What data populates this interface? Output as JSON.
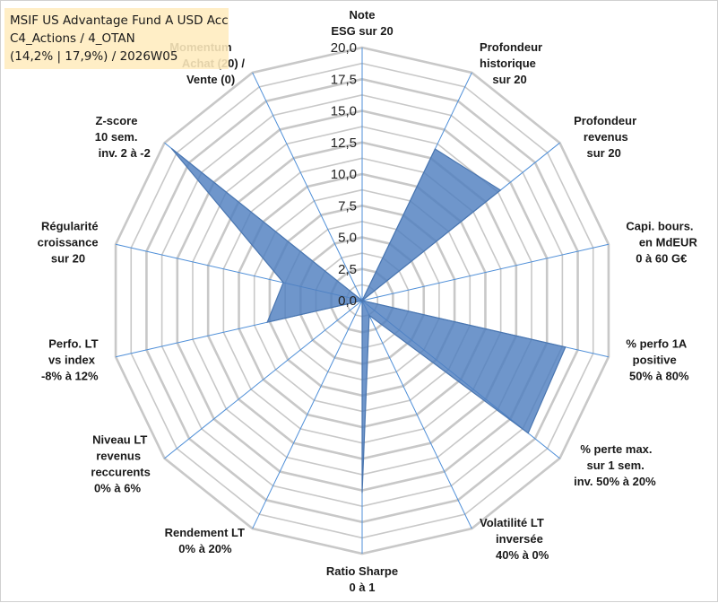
{
  "title": {
    "line1": "MSIF US Advantage Fund A USD Acc",
    "line2": "C4_Actions / 4_OTAN",
    "line3": "(14,2% | 17,9%) / 2026W05"
  },
  "colors": {
    "fill": "#4f7fbf",
    "stroke": "#4a76b0",
    "grid": "#c8c8c8",
    "spoke": "#4f8fd8",
    "title_bg": "#ffecbe"
  },
  "chart_data": {
    "type": "radar",
    "ylim": [
      0,
      20
    ],
    "ticks": [
      "0,0",
      "2,5",
      "5,0",
      "7,5",
      "10,0",
      "12,5",
      "15,0",
      "17,5",
      "20,0"
    ],
    "categories": [
      [
        "Note",
        "ESG sur 20"
      ],
      [
        "Profondeur",
        "historique",
        "sur 20"
      ],
      [
        "Profondeur",
        "revenus",
        "sur 20"
      ],
      [
        "Capi. bours.",
        "en MdEUR",
        "0 à 60 G€"
      ],
      [
        "% perfo 1A",
        "positive",
        "50% à 80%"
      ],
      [
        "% perte max.",
        "sur 1 sem.",
        "inv. 50% à 20%"
      ],
      [
        "Volatilité LT",
        "inversée",
        "40% à 0%"
      ],
      [
        "Ratio Sharpe",
        "0 à 1"
      ],
      [
        "Rendement LT",
        "0% à 20%"
      ],
      [
        "Niveau LT",
        "revenus",
        "reccurents",
        "0% à 6%"
      ],
      [
        "Perfo. LT",
        "vs index",
        "-8% à 12%"
      ],
      [
        "Régularité",
        "croissance",
        "sur 20"
      ],
      [
        "Z-score",
        "10 sem.",
        "inv. 2 à -2"
      ],
      [
        "Momentum",
        "Achat (20) /",
        "Vente (0)"
      ]
    ],
    "series": [
      {
        "name": "MSIF US Advantage Fund A USD Acc",
        "values": [
          0,
          13.3,
          14.0,
          0,
          16.5,
          16.8,
          1.3,
          15.2,
          0,
          0,
          7.7,
          6.4,
          19.3,
          0
        ]
      }
    ]
  }
}
